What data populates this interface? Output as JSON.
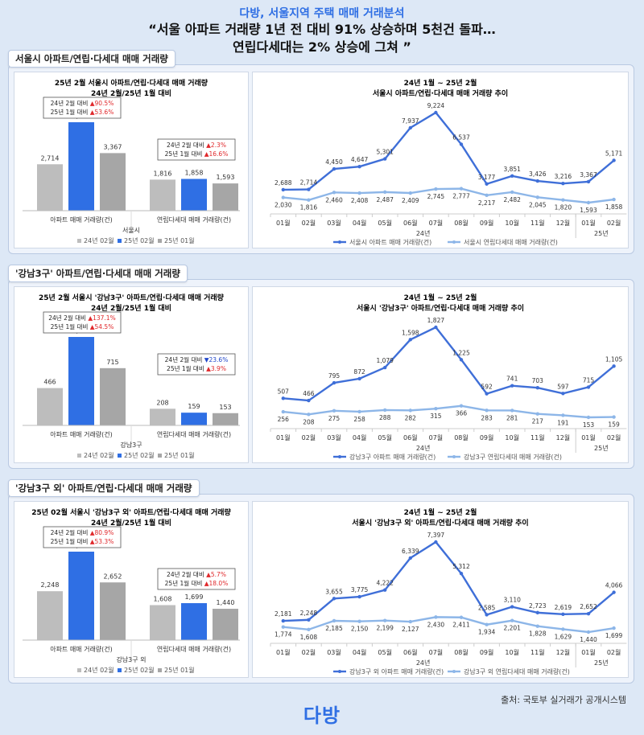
{
  "header": {
    "subtitle": "다방, 서울지역 주택 매매 거래분석",
    "title_line1": "“서울 아파트 거래량 1년 전 대비 91% 상승하며 5천건 돌파…",
    "title_line2": "연립다세대는 2% 상승에 그쳐 ”"
  },
  "footer": {
    "source": "출처: 국토부 실거래가 공개시스템",
    "logo": "다방"
  },
  "colors": {
    "bar_prev_year": "#bdbdbd",
    "bar_current": "#2f6fe4",
    "bar_prev_month": "#a6a6a6",
    "line_apt": "#3f6fd8",
    "line_villa": "#8db6e8",
    "up": "#e0282b",
    "down": "#2046c9"
  },
  "chart_data": [
    {
      "section_title": "서울시 아파트/연립·다세대 매매 거래량",
      "type": "bar",
      "title": "25년 2월 서울시 아파트/연립·다세대 매매 거래량",
      "subtitle": "24년 2월/25년 1월 대비",
      "categories": [
        "아파트 매매 거래량(건)",
        "연립다세대 매매 거래량(건)"
      ],
      "group_label": "서울시",
      "series": [
        {
          "name": "24년 02월",
          "values": [
            2714,
            1816
          ]
        },
        {
          "name": "25년 02월",
          "values": [
            5171,
            1858
          ]
        },
        {
          "name": "25년 01월",
          "values": [
            3367,
            1593
          ]
        }
      ],
      "callouts": [
        {
          "yoy_label": "24년 2월 대비",
          "yoy_sign": "▲",
          "yoy": "90.5%",
          "mom_label": "25년 1월 대비",
          "mom_sign": "▲",
          "mom": "53.6%"
        },
        {
          "yoy_label": "24년 2월 대비",
          "yoy_sign": "▲",
          "yoy": "2.3%",
          "mom_label": "25년 1월 대비",
          "mom_sign": "▲",
          "mom": "16.6%"
        }
      ],
      "legend_position": "bottom"
    },
    {
      "type": "line",
      "title": "24년 1월 ~ 25년 2월",
      "subtitle": "서울시 아파트/연립·다세대 매매 거래량 추이",
      "x": [
        "01월",
        "02월",
        "03월",
        "04월",
        "05월",
        "06월",
        "07월",
        "08월",
        "09월",
        "10월",
        "11월",
        "12월",
        "01월",
        "02월"
      ],
      "year_labels": [
        "24년",
        "25년"
      ],
      "series": [
        {
          "name": "서울시 아파트 매매 거래량(건)",
          "values": [
            2688,
            2714,
            4450,
            4647,
            5301,
            7937,
            9224,
            6537,
            3177,
            3851,
            3426,
            3216,
            3367,
            5171
          ]
        },
        {
          "name": "서울시 연립다세대 매매 거래량(건)",
          "values": [
            2030,
            1816,
            2460,
            2408,
            2487,
            2409,
            2745,
            2777,
            2217,
            2482,
            2045,
            1820,
            1593,
            1858
          ]
        }
      ],
      "legend_position": "bottom"
    },
    {
      "section_title": "'강남3구' 아파트/연립·다세대 매매 거래량",
      "type": "bar",
      "title": "25년 2월 서울시 '강남3구' 아파트/연립·다세대 매매 거래량",
      "subtitle": "24년 2월/25년 1월 대비",
      "categories": [
        "아파트 매매 거래량(건)",
        "연립다세대 매매 거래량(건)"
      ],
      "group_label": "강남3구",
      "series": [
        {
          "name": "24년 02월",
          "values": [
            466,
            208
          ]
        },
        {
          "name": "25년 02월",
          "values": [
            1105,
            159
          ]
        },
        {
          "name": "25년 01월",
          "values": [
            715,
            153
          ]
        }
      ],
      "callouts": [
        {
          "yoy_label": "24년 2월 대비",
          "yoy_sign": "▲",
          "yoy": "137.1%",
          "mom_label": "25년 1월 대비",
          "mom_sign": "▲",
          "mom": "54.5%"
        },
        {
          "yoy_label": "24년 2월 대비",
          "yoy_sign": "▼",
          "yoy": "23.6%",
          "mom_label": "25년 1월 대비",
          "mom_sign": "▲",
          "mom": "3.9%"
        }
      ],
      "legend_position": "bottom"
    },
    {
      "type": "line",
      "title": "24년 1월 ~ 25년 2월",
      "subtitle": "서울시 '강남3구' 아파트/연립·다세대 매매 거래량 추이",
      "x": [
        "01월",
        "02월",
        "03월",
        "04월",
        "05월",
        "06월",
        "07월",
        "08월",
        "09월",
        "10월",
        "11월",
        "12월",
        "01월",
        "02월"
      ],
      "year_labels": [
        "24년",
        "25년"
      ],
      "series": [
        {
          "name": "강남3구 아파트 매매 거래량(건)",
          "values": [
            507,
            466,
            795,
            872,
            1079,
            1598,
            1827,
            1225,
            592,
            741,
            703,
            597,
            715,
            1105
          ]
        },
        {
          "name": "강남3구 연립다세대 매매 거래량(건)",
          "values": [
            256,
            208,
            275,
            258,
            288,
            282,
            315,
            366,
            283,
            281,
            217,
            191,
            153,
            159
          ]
        }
      ],
      "legend_position": "bottom"
    },
    {
      "section_title": "'강남3구 외' 아파트/연립·다세대 매매 거래량",
      "type": "bar",
      "title": "25년 02월 서울시 '강남3구 외' 아파트/연립·다세대 매매 거래량",
      "subtitle": "24년 2월/25년 1월 대비",
      "categories": [
        "아파트 매매 거래량(건)",
        "연립다세대 매매 거래량(건)"
      ],
      "group_label": "강남3구 외",
      "series": [
        {
          "name": "24년 02월",
          "values": [
            2248,
            1608
          ]
        },
        {
          "name": "25년 02월",
          "values": [
            4066,
            1699
          ]
        },
        {
          "name": "25년 01월",
          "values": [
            2652,
            1440
          ]
        }
      ],
      "callouts": [
        {
          "yoy_label": "24년 2월 대비",
          "yoy_sign": "▲",
          "yoy": "80.9%",
          "mom_label": "25년 1월 대비",
          "mom_sign": "▲",
          "mom": "53.3%"
        },
        {
          "yoy_label": "24년 2월 대비",
          "yoy_sign": "▲",
          "yoy": "5.7%",
          "mom_label": "25년 1월 대비",
          "mom_sign": "▲",
          "mom": "18.0%"
        }
      ],
      "legend_position": "bottom"
    },
    {
      "type": "line",
      "title": "24년 1월 ~ 25년 2월",
      "subtitle": "서울시 '강남3구 외' 아파트/연립·다세대 매매 거래량 추이",
      "x": [
        "01월",
        "02월",
        "03월",
        "04월",
        "05월",
        "06월",
        "07월",
        "08월",
        "09월",
        "10월",
        "11월",
        "12월",
        "01월",
        "02월"
      ],
      "year_labels": [
        "24년",
        "25년"
      ],
      "series": [
        {
          "name": "강남3구 외 아파트 매매 거래량(건)",
          "values": [
            2181,
            2248,
            3655,
            3775,
            4222,
            6339,
            7397,
            5312,
            2585,
            3110,
            2723,
            2619,
            2652,
            4066
          ]
        },
        {
          "name": "강남3구 외 연립다세대 매매 거래량(건)",
          "values": [
            1774,
            1608,
            2185,
            2150,
            2199,
            2127,
            2430,
            2411,
            1934,
            2201,
            1828,
            1629,
            1440,
            1699
          ]
        }
      ],
      "legend_position": "bottom"
    }
  ]
}
